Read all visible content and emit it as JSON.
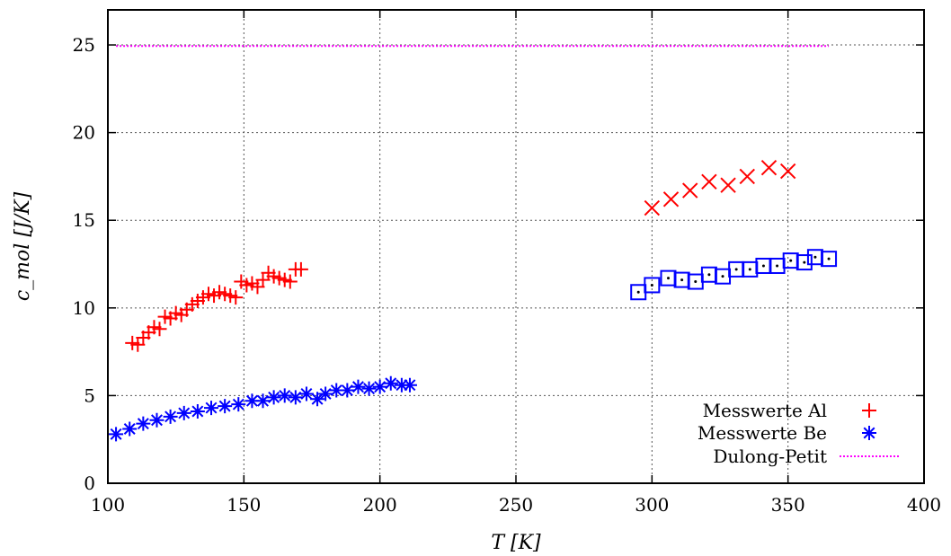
{
  "chart_data": {
    "type": "scatter",
    "xlabel": "T [K]",
    "ylabel": "c_mol [J/K]",
    "xlim": [
      100,
      400
    ],
    "ylim": [
      0,
      27
    ],
    "xticks": [
      100,
      150,
      200,
      250,
      300,
      350,
      400
    ],
    "yticks": [
      0,
      5,
      10,
      15,
      20,
      25
    ],
    "xtick_labels": [
      "100",
      "150",
      "200",
      "250",
      "300",
      "350",
      "400"
    ],
    "ytick_labels": [
      "0",
      "5",
      "10",
      "15",
      "20",
      "25"
    ],
    "grid": true,
    "legend_position": "bottom-right",
    "series": [
      {
        "name": "Messwerte Al",
        "marker": "plus",
        "color": "#ff0000",
        "x": [
          109,
          111,
          113,
          115,
          117,
          119,
          121,
          123,
          125,
          127,
          129,
          131,
          133,
          135,
          137,
          139,
          141,
          143,
          145,
          147,
          149,
          151,
          153,
          155,
          157,
          159,
          161,
          163,
          165,
          167,
          169,
          171
        ],
        "y": [
          8.0,
          7.9,
          8.3,
          8.6,
          8.9,
          8.8,
          9.5,
          9.4,
          9.7,
          9.6,
          9.9,
          10.2,
          10.4,
          10.6,
          10.8,
          10.7,
          10.9,
          10.8,
          10.7,
          10.6,
          11.5,
          11.3,
          11.4,
          11.2,
          11.6,
          12.0,
          11.8,
          11.7,
          11.6,
          11.5,
          12.2,
          12.2
        ]
      },
      {
        "name": "Messwerte Be",
        "marker": "star",
        "color": "#0000ff",
        "x": [
          103,
          108,
          113,
          118,
          123,
          128,
          133,
          138,
          143,
          148,
          153,
          157,
          161,
          165,
          169,
          173,
          177,
          180,
          184,
          188,
          192,
          196,
          200,
          204,
          208,
          211
        ],
        "y": [
          2.8,
          3.1,
          3.4,
          3.6,
          3.8,
          4.0,
          4.1,
          4.3,
          4.4,
          4.5,
          4.7,
          4.7,
          4.9,
          5.0,
          4.9,
          5.1,
          4.8,
          5.1,
          5.3,
          5.3,
          5.5,
          5.4,
          5.5,
          5.7,
          5.6,
          5.6
        ]
      },
      {
        "name": "",
        "marker": "cross",
        "color": "#ff0000",
        "x": [
          300,
          307,
          314,
          321,
          328,
          335,
          343,
          350
        ],
        "y": [
          15.7,
          16.2,
          16.7,
          17.2,
          17.0,
          17.5,
          18.0,
          17.8
        ]
      },
      {
        "name": "",
        "marker": "square-dot",
        "color": "#0000ff",
        "x": [
          295,
          300,
          306,
          311,
          316,
          321,
          326,
          331,
          336,
          341,
          346,
          351,
          356,
          360,
          365
        ],
        "y": [
          10.9,
          11.3,
          11.7,
          11.6,
          11.5,
          11.9,
          11.8,
          12.2,
          12.2,
          12.4,
          12.4,
          12.7,
          12.6,
          12.9,
          12.8
        ]
      },
      {
        "name": "Dulong-Petit",
        "marker": "dotted-line",
        "color": "#ff00ff",
        "x": [
          103,
          365
        ],
        "y": [
          24.94,
          24.94
        ]
      }
    ]
  },
  "colors": {
    "al": "#ff0000",
    "be": "#0000ff",
    "dulong_petit": "#ff00ff",
    "grid": "#555555"
  }
}
